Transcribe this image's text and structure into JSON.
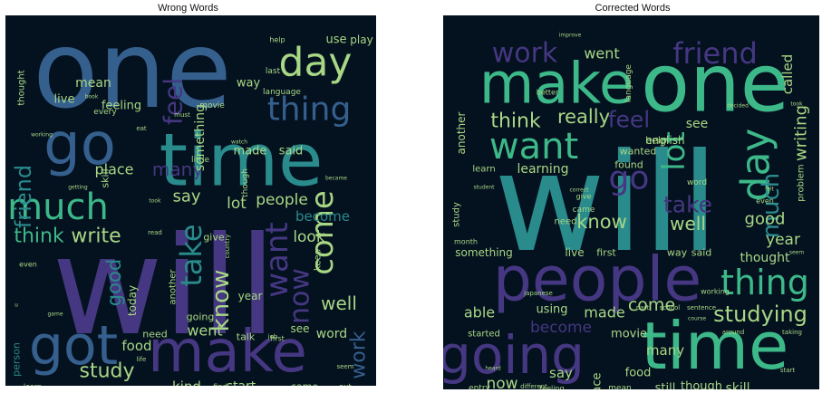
{
  "figure": {
    "panels": [
      {
        "title": "Wrong Words"
      },
      {
        "title": "Corrected Words"
      }
    ]
  },
  "palette": {
    "purple": "#453781",
    "blue": "#355f8d",
    "teal": "#2a8b8c",
    "green": "#3db989",
    "lightgreen": "#a8d785",
    "background": "#04111f"
  },
  "chart_data": [
    {
      "type": "wordcloud",
      "title": "Wrong Words",
      "words": [
        {
          "text": "will",
          "weight": 100
        },
        {
          "text": "one",
          "weight": 95
        },
        {
          "text": "time",
          "weight": 75
        },
        {
          "text": "make",
          "weight": 62
        },
        {
          "text": "go",
          "weight": 58
        },
        {
          "text": "got",
          "weight": 55
        },
        {
          "text": "much",
          "weight": 42
        },
        {
          "text": "day",
          "weight": 40
        },
        {
          "text": "thing",
          "weight": 35
        },
        {
          "text": "come",
          "weight": 34
        },
        {
          "text": "want",
          "weight": 33
        },
        {
          "text": "take",
          "weight": 32
        },
        {
          "text": "now",
          "weight": 30
        },
        {
          "text": "feel",
          "weight": 28
        },
        {
          "text": "know",
          "weight": 26
        },
        {
          "text": "friend",
          "weight": 24
        },
        {
          "text": "think",
          "weight": 22
        },
        {
          "text": "write",
          "weight": 22
        },
        {
          "text": "study",
          "weight": 22
        },
        {
          "text": "work",
          "weight": 22
        },
        {
          "text": "good",
          "weight": 21
        },
        {
          "text": "well",
          "weight": 20
        },
        {
          "text": "many",
          "weight": 20
        },
        {
          "text": "say",
          "weight": 18
        },
        {
          "text": "lot",
          "weight": 17
        },
        {
          "text": "people",
          "weight": 17
        },
        {
          "text": "look",
          "weight": 17
        },
        {
          "text": "place",
          "weight": 16
        },
        {
          "text": "went",
          "weight": 16
        },
        {
          "text": "become",
          "weight": 15
        },
        {
          "text": "food",
          "weight": 15
        },
        {
          "text": "kind",
          "weight": 15
        },
        {
          "text": "start",
          "weight": 14
        },
        {
          "text": "word",
          "weight": 14
        },
        {
          "text": "something",
          "weight": 14
        },
        {
          "text": "mean",
          "weight": 14
        },
        {
          "text": "live",
          "weight": 13
        },
        {
          "text": "feeling",
          "weight": 13
        },
        {
          "text": "made",
          "weight": 13
        },
        {
          "text": "said",
          "weight": 13
        },
        {
          "text": "way",
          "weight": 13
        },
        {
          "text": "use",
          "weight": 13
        },
        {
          "text": "play",
          "weight": 12
        },
        {
          "text": "today",
          "weight": 12
        },
        {
          "text": "year",
          "weight": 12
        },
        {
          "text": "see",
          "weight": 12
        },
        {
          "text": "need",
          "weight": 11
        },
        {
          "text": "talk",
          "weight": 11
        },
        {
          "text": "person",
          "weight": 11
        },
        {
          "text": "came",
          "weight": 11
        },
        {
          "text": "give",
          "weight": 11
        },
        {
          "text": "going",
          "weight": 11
        },
        {
          "text": "skill",
          "weight": 11
        },
        {
          "text": "keep",
          "weight": 10
        },
        {
          "text": "another",
          "weight": 10
        },
        {
          "text": "thought",
          "weight": 10
        },
        {
          "text": "language",
          "weight": 9
        },
        {
          "text": "movie",
          "weight": 9
        },
        {
          "text": "every",
          "weight": 9
        },
        {
          "text": "little",
          "weight": 9
        },
        {
          "text": "though",
          "weight": 9
        },
        {
          "text": "last",
          "weight": 9
        },
        {
          "text": "help",
          "weight": 8
        },
        {
          "text": "first",
          "weight": 8
        },
        {
          "text": "even",
          "weight": 8
        },
        {
          "text": "find",
          "weight": 8
        },
        {
          "text": "put",
          "weight": 8
        },
        {
          "text": "learn",
          "weight": 8
        },
        {
          "text": "read",
          "weight": 7
        },
        {
          "text": "seem",
          "weight": 7
        },
        {
          "text": "country",
          "weight": 7
        },
        {
          "text": "must",
          "weight": 7
        },
        {
          "text": "eat",
          "weight": 7
        },
        {
          "text": "job",
          "weight": 7
        },
        {
          "text": "life",
          "weight": 7
        },
        {
          "text": "took",
          "weight": 6
        },
        {
          "text": "getting",
          "weight": 6
        },
        {
          "text": "watch",
          "weight": 6
        },
        {
          "text": "student",
          "weight": 6
        },
        {
          "text": "became",
          "weight": 6
        },
        {
          "text": "game",
          "weight": 6
        },
        {
          "text": "book",
          "weight": 6
        },
        {
          "text": "u",
          "weight": 6
        },
        {
          "text": "working",
          "weight": 6
        }
      ]
    },
    {
      "type": "wordcloud",
      "title": "Corrected Words",
      "words": [
        {
          "text": "will",
          "weight": 100
        },
        {
          "text": "one",
          "weight": 88
        },
        {
          "text": "time",
          "weight": 72
        },
        {
          "text": "people",
          "weight": 68
        },
        {
          "text": "make",
          "weight": 62
        },
        {
          "text": "going",
          "weight": 58
        },
        {
          "text": "day",
          "weight": 44
        },
        {
          "text": "want",
          "weight": 40
        },
        {
          "text": "thing",
          "weight": 38
        },
        {
          "text": "go",
          "weight": 36
        },
        {
          "text": "lot",
          "weight": 34
        },
        {
          "text": "friend",
          "weight": 32
        },
        {
          "text": "work",
          "weight": 30
        },
        {
          "text": "much",
          "weight": 26
        },
        {
          "text": "feel",
          "weight": 25
        },
        {
          "text": "take",
          "weight": 25
        },
        {
          "text": "studying",
          "weight": 24
        },
        {
          "text": "think",
          "weight": 22
        },
        {
          "text": "really",
          "weight": 21
        },
        {
          "text": "know",
          "weight": 21
        },
        {
          "text": "well",
          "weight": 20
        },
        {
          "text": "come",
          "weight": 19
        },
        {
          "text": "writing",
          "weight": 18
        },
        {
          "text": "good",
          "weight": 18
        },
        {
          "text": "year",
          "weight": 17
        },
        {
          "text": "become",
          "weight": 17
        },
        {
          "text": "now",
          "weight": 17
        },
        {
          "text": "made",
          "weight": 16
        },
        {
          "text": "able",
          "weight": 16
        },
        {
          "text": "went",
          "weight": 16
        },
        {
          "text": "say",
          "weight": 15
        },
        {
          "text": "called",
          "weight": 15
        },
        {
          "text": "many",
          "weight": 15
        },
        {
          "text": "skill",
          "weight": 14
        },
        {
          "text": "see",
          "weight": 14
        },
        {
          "text": "learning",
          "weight": 14
        },
        {
          "text": "thought",
          "weight": 14
        },
        {
          "text": "still",
          "weight": 13
        },
        {
          "text": "place",
          "weight": 13
        },
        {
          "text": "though",
          "weight": 13
        },
        {
          "text": "movie",
          "weight": 13
        },
        {
          "text": "using",
          "weight": 13
        },
        {
          "text": "food",
          "weight": 13
        },
        {
          "text": "english",
          "weight": 12
        },
        {
          "text": "another",
          "weight": 12
        },
        {
          "text": "something",
          "weight": 12
        },
        {
          "text": "live",
          "weight": 12
        },
        {
          "text": "first",
          "weight": 11
        },
        {
          "text": "way",
          "weight": 11
        },
        {
          "text": "said",
          "weight": 11
        },
        {
          "text": "help",
          "weight": 11
        },
        {
          "text": "wanted",
          "weight": 11
        },
        {
          "text": "found",
          "weight": 11
        },
        {
          "text": "need",
          "weight": 10
        },
        {
          "text": "learn",
          "weight": 10
        },
        {
          "text": "problem",
          "weight": 10
        },
        {
          "text": "study",
          "weight": 10
        },
        {
          "text": "started",
          "weight": 10
        },
        {
          "text": "entry",
          "weight": 9
        },
        {
          "text": "mean",
          "weight": 9
        },
        {
          "text": "word",
          "weight": 9
        },
        {
          "text": "came",
          "weight": 9
        },
        {
          "text": "language",
          "weight": 9
        },
        {
          "text": "better",
          "weight": 8
        },
        {
          "text": "give",
          "weight": 8
        },
        {
          "text": "month",
          "weight": 8
        },
        {
          "text": "working",
          "weight": 8
        },
        {
          "text": "feeling",
          "weight": 8
        },
        {
          "text": "even",
          "weight": 8
        },
        {
          "text": "sentence",
          "weight": 7
        },
        {
          "text": "part",
          "weight": 7
        },
        {
          "text": "school",
          "weight": 7
        },
        {
          "text": "around",
          "weight": 7
        },
        {
          "text": "japanese",
          "weight": 7
        },
        {
          "text": "different",
          "weight": 7
        },
        {
          "text": "start",
          "weight": 7
        },
        {
          "text": "taking",
          "weight": 7
        },
        {
          "text": "course",
          "weight": 6
        },
        {
          "text": "student",
          "weight": 6
        },
        {
          "text": "correct",
          "weight": 6
        },
        {
          "text": "felt",
          "weight": 6
        },
        {
          "text": "took",
          "weight": 6
        },
        {
          "text": "decided",
          "weight": 6
        },
        {
          "text": "improve",
          "weight": 6
        },
        {
          "text": "heard",
          "weight": 6
        },
        {
          "text": "seem",
          "weight": 6
        }
      ]
    }
  ]
}
